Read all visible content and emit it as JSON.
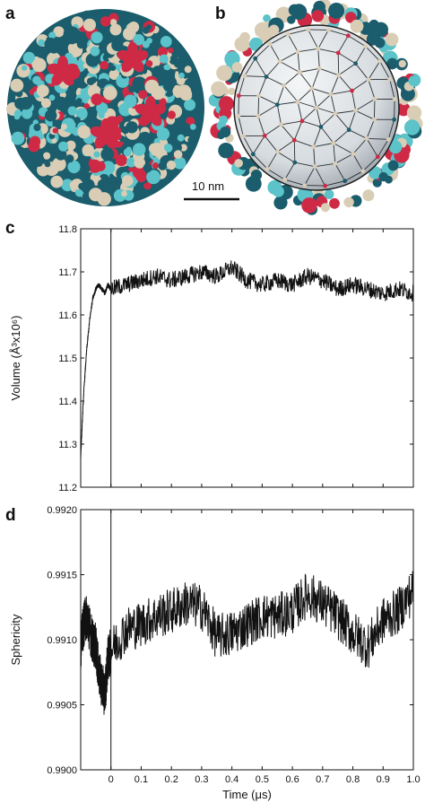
{
  "panels": {
    "a": "a",
    "b": "b",
    "c": "c",
    "d": "d"
  },
  "scale_bar": {
    "label": "10 nm"
  },
  "colors": {
    "teal_dark": "#1b5d6c",
    "teal_light": "#5bc3c9",
    "red": "#cf2a45",
    "sand": "#d9cdb5",
    "shell": "#dfe3e6"
  },
  "chart_data": [
    {
      "type": "line",
      "xlabel": "",
      "ylabel": "Volume (Å³x10⁶)",
      "xlim": [
        -0.1,
        1.0
      ],
      "ylim": [
        11.2,
        11.8
      ],
      "yticks": [
        "11.2",
        "11.3",
        "11.4",
        "11.5",
        "11.6",
        "11.7",
        "11.8"
      ],
      "vline_x": 0,
      "series": [
        {
          "x": [
            -0.1,
            -0.09,
            -0.08,
            -0.07,
            -0.06,
            -0.05,
            -0.04,
            -0.03,
            -0.02,
            -0.01,
            0.0,
            0.05,
            0.1,
            0.15,
            0.2,
            0.25,
            0.3,
            0.35,
            0.4,
            0.45,
            0.5,
            0.55,
            0.6,
            0.65,
            0.7,
            0.75,
            0.8,
            0.85,
            0.9,
            0.95,
            1.0
          ],
          "y": [
            11.27,
            11.42,
            11.52,
            11.59,
            11.64,
            11.66,
            11.67,
            11.66,
            11.65,
            11.67,
            11.66,
            11.67,
            11.68,
            11.69,
            11.68,
            11.69,
            11.7,
            11.69,
            11.71,
            11.68,
            11.67,
            11.68,
            11.67,
            11.69,
            11.68,
            11.66,
            11.67,
            11.66,
            11.65,
            11.66,
            11.65
          ],
          "noise": 0.02
        }
      ]
    },
    {
      "type": "line",
      "xlabel": "Time (μs)",
      "ylabel": "Sphericity",
      "xlim": [
        -0.1,
        1.0
      ],
      "ylim": [
        0.99,
        0.992
      ],
      "yticks": [
        "0.9900",
        "0.9905",
        "0.9910",
        "0.9915",
        "0.9920"
      ],
      "xticks": [
        "0",
        "0.1",
        "0.2",
        "0.3",
        "0.4",
        "0.5",
        "0.6",
        "0.7",
        "0.8",
        "0.9",
        "1.0"
      ],
      "vline_x": 0,
      "series": [
        {
          "x": [
            -0.1,
            -0.09,
            -0.08,
            -0.07,
            -0.06,
            -0.05,
            -0.04,
            -0.03,
            -0.02,
            -0.01,
            0.0,
            0.05,
            0.1,
            0.15,
            0.2,
            0.25,
            0.3,
            0.35,
            0.4,
            0.45,
            0.5,
            0.55,
            0.6,
            0.65,
            0.7,
            0.75,
            0.8,
            0.85,
            0.9,
            0.95,
            1.0
          ],
          "y": [
            0.99095,
            0.99112,
            0.99118,
            0.99108,
            0.99098,
            0.99095,
            0.99075,
            0.99065,
            0.99058,
            0.99085,
            0.99092,
            0.99108,
            0.99112,
            0.99118,
            0.99122,
            0.99128,
            0.99125,
            0.99102,
            0.99105,
            0.99112,
            0.99118,
            0.99118,
            0.99122,
            0.99135,
            0.99128,
            0.99118,
            0.99105,
            0.99095,
            0.99115,
            0.99122,
            0.99138
          ],
          "noise": 0.00018
        }
      ]
    }
  ]
}
